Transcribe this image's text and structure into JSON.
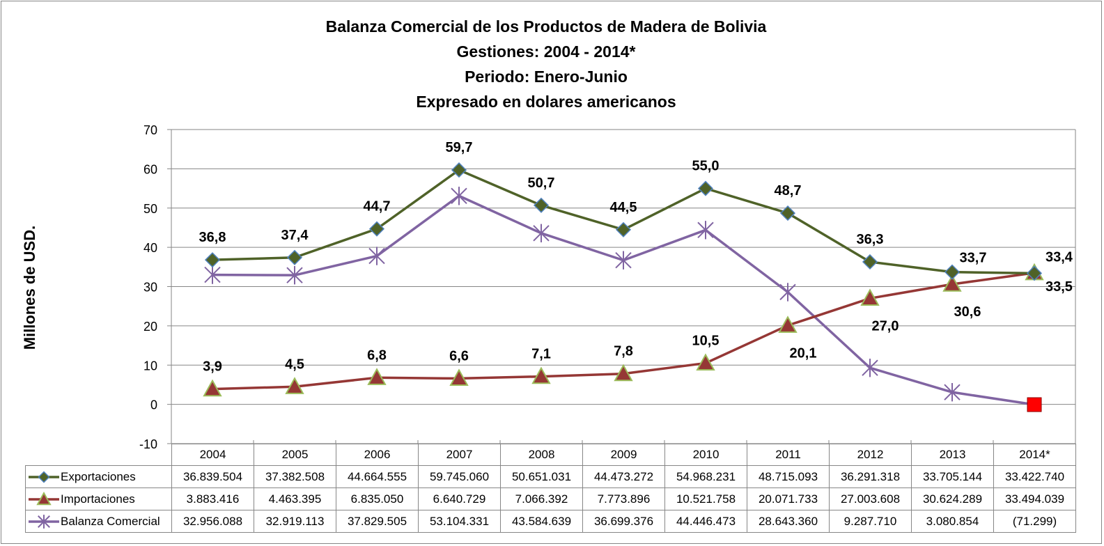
{
  "chart_data": {
    "type": "line",
    "title_lines": [
      "Balanza Comercial de los Productos de Madera de Bolivia",
      "Gestiones: 2004 - 2014*",
      "Periodo: Enero-Junio",
      "Expresado en dolares americanos"
    ],
    "ylabel": "Millones de USD.",
    "ylim": [
      -10,
      70
    ],
    "yticks": [
      -10,
      0,
      10,
      20,
      30,
      40,
      50,
      60,
      70
    ],
    "grid": true,
    "legend": "data-table",
    "categories": [
      "2004",
      "2005",
      "2006",
      "2007",
      "2008",
      "2009",
      "2010",
      "2011",
      "2012",
      "2013",
      "2014*"
    ],
    "series": [
      {
        "name": "Exportaciones",
        "color": "#4F6228",
        "marker": "diamond",
        "values": [
          36.8,
          37.4,
          44.7,
          59.7,
          50.7,
          44.5,
          55.0,
          48.7,
          36.3,
          33.7,
          33.4
        ],
        "labels": [
          "36,8",
          "37,4",
          "44,7",
          "59,7",
          "50,7",
          "44,5",
          "55,0",
          "48,7",
          "36,3",
          "33,7",
          "33,4"
        ],
        "table": [
          "36.839.504",
          "37.382.508",
          "44.664.555",
          "59.745.060",
          "50.651.031",
          "44.473.272",
          "54.968.231",
          "48.715.093",
          "36.291.318",
          "33.705.144",
          "33.422.740"
        ]
      },
      {
        "name": "Importaciones",
        "color": "#953735",
        "marker": "triangle",
        "values": [
          3.9,
          4.5,
          6.8,
          6.6,
          7.1,
          7.8,
          10.5,
          20.1,
          27.0,
          30.6,
          33.5
        ],
        "labels": [
          "3,9",
          "4,5",
          "6,8",
          "6,6",
          "7,1",
          "7,8",
          "10,5",
          "20,1",
          "27,0",
          "30,6",
          "33,5"
        ],
        "table": [
          "3.883.416",
          "4.463.395",
          "6.835.050",
          "6.640.729",
          "7.066.392",
          "7.773.896",
          "10.521.758",
          "20.071.733",
          "27.003.608",
          "30.624.289",
          "33.494.039"
        ]
      },
      {
        "name": "Balanza Comercial",
        "color": "#8064A2",
        "marker": "star",
        "values": [
          33.0,
          32.9,
          37.8,
          53.1,
          43.6,
          36.7,
          44.4,
          28.6,
          9.3,
          3.1,
          -0.07
        ],
        "table": [
          "32.956.088",
          "32.919.113",
          "37.829.505",
          "53.104.331",
          "43.584.639",
          "36.699.376",
          "44.446.473",
          "28.643.360",
          "9.287.710",
          "3.080.854",
          "(71.299)"
        ]
      }
    ],
    "highlight_point": {
      "series": "Balanza Comercial",
      "category": "2014*",
      "color": "#FF0000",
      "marker": "square"
    }
  }
}
